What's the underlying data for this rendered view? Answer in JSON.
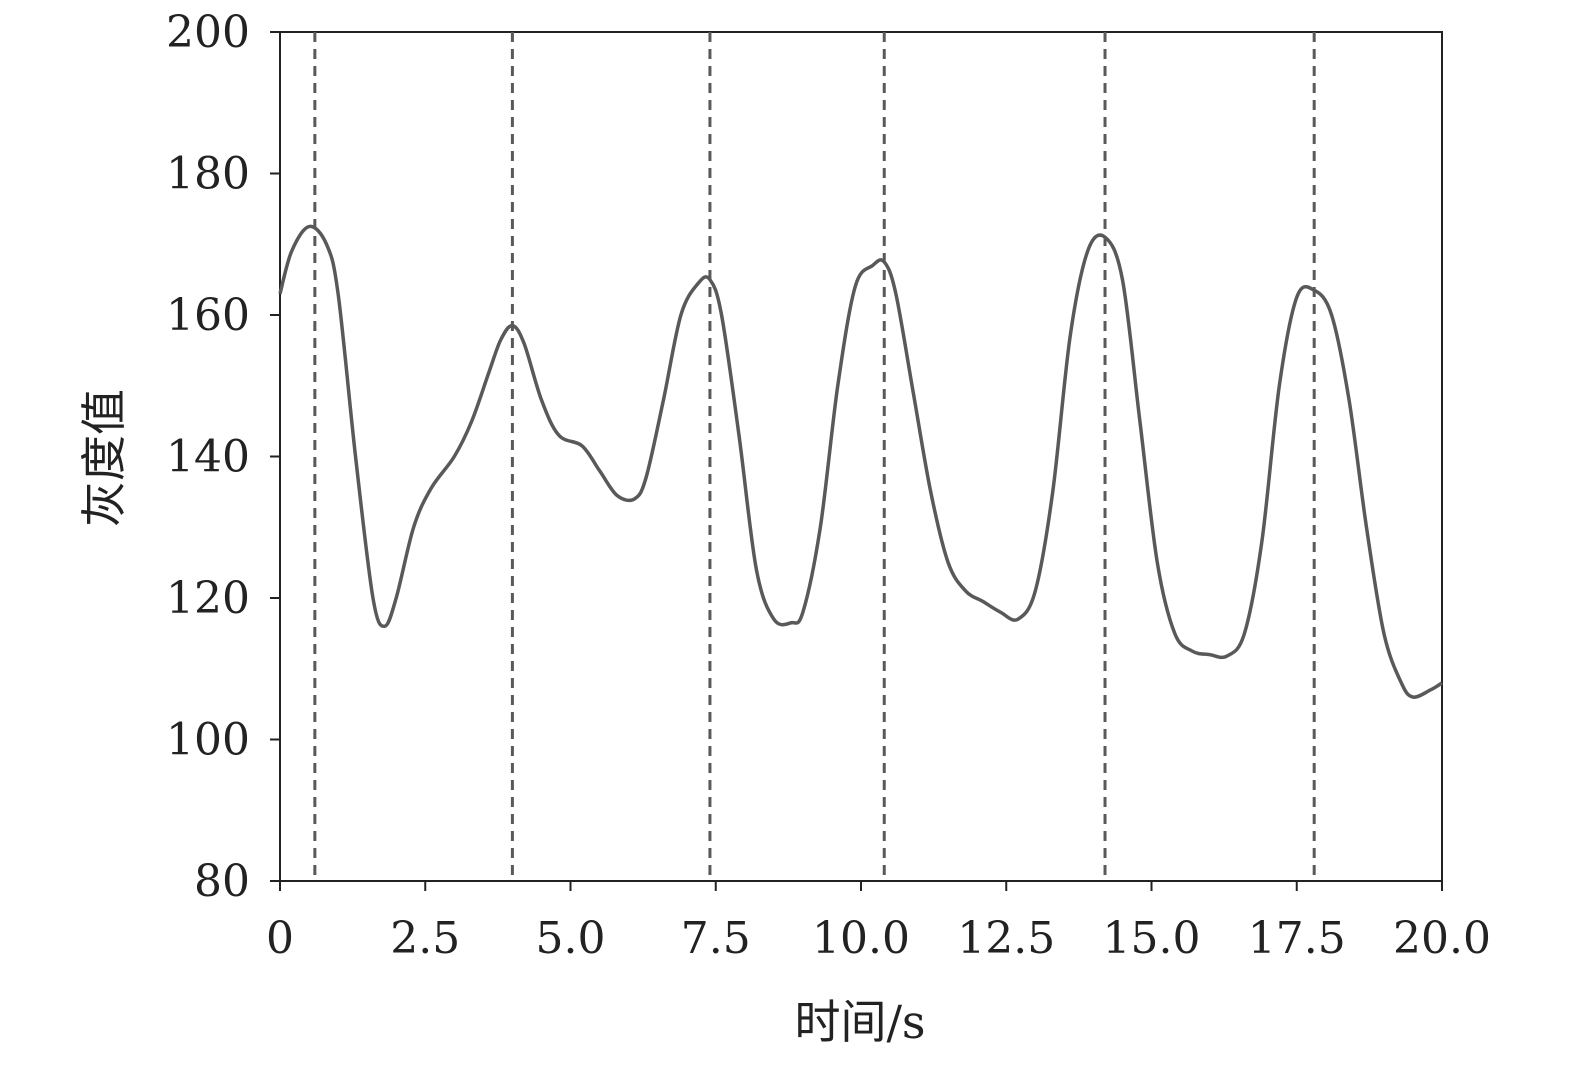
{
  "chart_data": {
    "type": "line",
    "title": "",
    "xlabel": "时间/s",
    "ylabel": "灰度值",
    "xlim": [
      0,
      20
    ],
    "ylim": [
      80,
      200
    ],
    "x_ticks": [
      0,
      2.5,
      5.0,
      7.5,
      10.0,
      12.5,
      15.0,
      17.5,
      20.0
    ],
    "x_tick_labels": [
      "0",
      "2.5",
      "5.0",
      "7.5",
      "10.0",
      "12.5",
      "15.0",
      "17.5",
      "20.0"
    ],
    "y_ticks": [
      80,
      100,
      120,
      140,
      160,
      180,
      200
    ],
    "y_tick_labels": [
      "80",
      "100",
      "120",
      "140",
      "160",
      "180",
      "200"
    ],
    "grid": false,
    "legend": "none",
    "line_color": "#595959",
    "dashed_line_color": "#595959",
    "vertical_dashed_lines_x": [
      0.6,
      4.0,
      7.4,
      10.4,
      14.2,
      17.8
    ],
    "series": [
      {
        "x": [
          0,
          0.2,
          0.5,
          0.8,
          1.0,
          1.3,
          1.6,
          1.8,
          2.0,
          2.3,
          2.6,
          3.0,
          3.3,
          3.6,
          3.8,
          4.0,
          4.2,
          4.5,
          4.8,
          5.2,
          5.5,
          5.8,
          6.1,
          6.3,
          6.6,
          6.9,
          7.2,
          7.4,
          7.6,
          7.9,
          8.2,
          8.5,
          8.8,
          9.0,
          9.3,
          9.6,
          9.9,
          10.2,
          10.4,
          10.6,
          10.9,
          11.2,
          11.5,
          11.8,
          12.1,
          12.4,
          12.7,
          13.0,
          13.3,
          13.6,
          13.9,
          14.2,
          14.5,
          14.8,
          15.1,
          15.4,
          15.7,
          16.0,
          16.3,
          16.6,
          16.9,
          17.2,
          17.5,
          17.8,
          18.1,
          18.4,
          18.7,
          19.0,
          19.3,
          19.5,
          19.8,
          20.0
        ],
        "y": [
          163,
          169,
          172.5,
          170,
          163,
          140,
          120,
          116,
          120,
          130,
          135.5,
          140,
          145,
          152,
          156.5,
          158.5,
          156,
          148,
          143,
          141.5,
          138,
          134.5,
          134,
          137,
          148,
          160,
          164.5,
          165,
          160,
          143,
          124,
          117,
          116.5,
          118,
          130,
          150,
          164,
          167,
          167.5,
          163,
          149,
          135,
          125,
          121,
          119.5,
          118,
          117,
          121,
          135,
          157,
          169,
          171,
          165,
          145,
          125,
          115,
          112.5,
          112,
          111.8,
          115,
          128,
          150,
          162.5,
          163.5,
          160,
          148,
          130,
          115,
          108,
          106,
          107,
          108
        ]
      }
    ]
  }
}
